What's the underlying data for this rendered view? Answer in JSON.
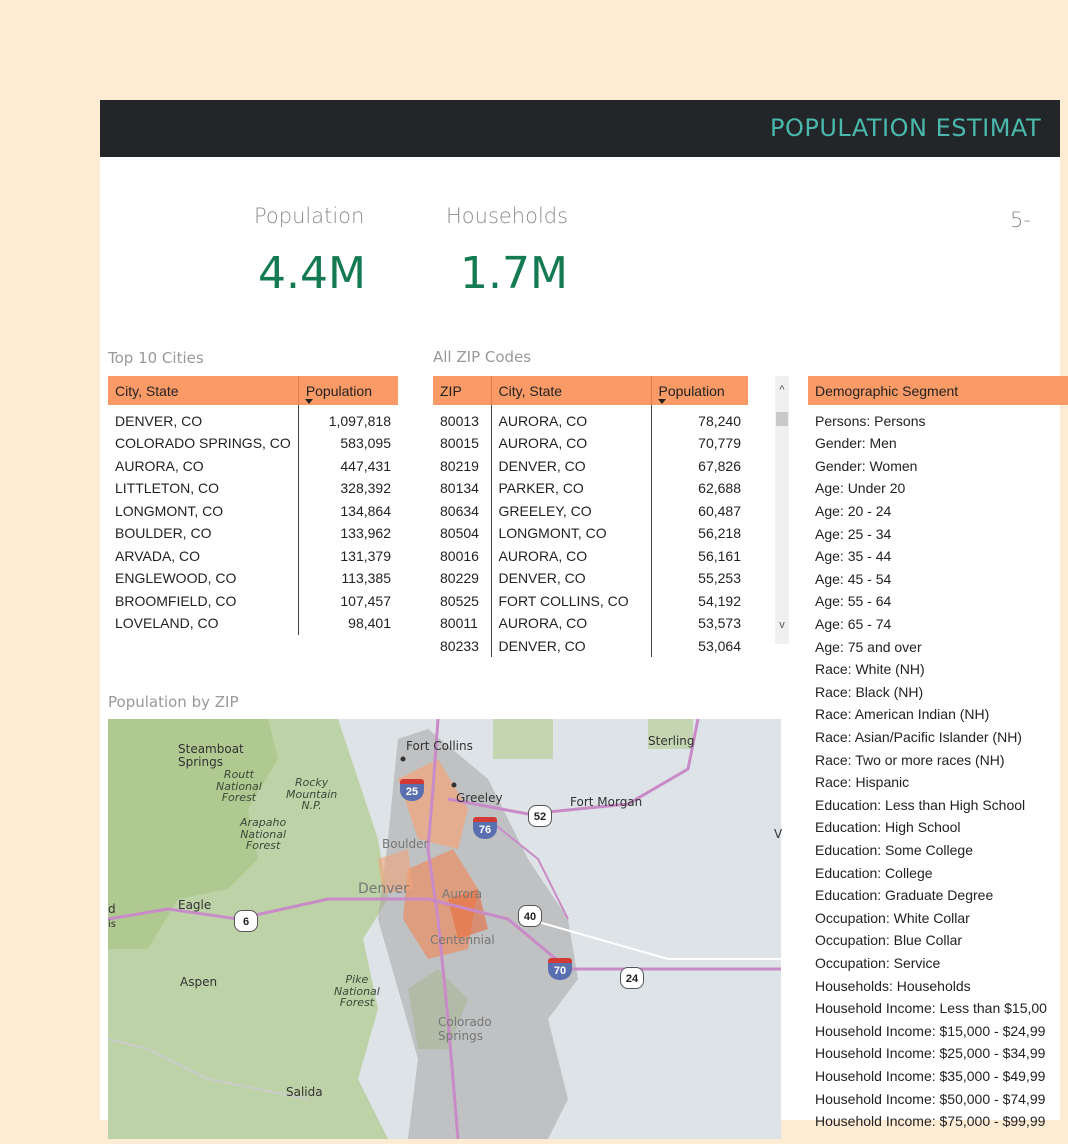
{
  "header": {
    "title": "POPULATION ESTIMAT",
    "subtitle_fragment": "5-"
  },
  "kpis": {
    "population": {
      "label": "Population",
      "value": "4.4M"
    },
    "households": {
      "label": "Households",
      "value": "1.7M"
    }
  },
  "top_cities": {
    "title": "Top 10 Cities",
    "columns": [
      "City, State",
      "Population"
    ],
    "rows": [
      [
        "DENVER, CO",
        "1,097,818"
      ],
      [
        "COLORADO SPRINGS, CO",
        "583,095"
      ],
      [
        "AURORA, CO",
        "447,431"
      ],
      [
        "LITTLETON, CO",
        "328,392"
      ],
      [
        "LONGMONT, CO",
        "134,864"
      ],
      [
        "BOULDER, CO",
        "133,962"
      ],
      [
        "ARVADA, CO",
        "131,379"
      ],
      [
        "ENGLEWOOD, CO",
        "113,385"
      ],
      [
        "BROOMFIELD, CO",
        "107,457"
      ],
      [
        "LOVELAND, CO",
        "98,401"
      ]
    ]
  },
  "zip_codes": {
    "title": "All ZIP Codes",
    "columns": [
      "ZIP",
      "City, State",
      "Population"
    ],
    "rows": [
      [
        "80013",
        "AURORA, CO",
        "78,240"
      ],
      [
        "80015",
        "AURORA, CO",
        "70,779"
      ],
      [
        "80219",
        "DENVER, CO",
        "67,826"
      ],
      [
        "80134",
        "PARKER, CO",
        "62,688"
      ],
      [
        "80634",
        "GREELEY, CO",
        "60,487"
      ],
      [
        "80504",
        "LONGMONT, CO",
        "56,218"
      ],
      [
        "80016",
        "AURORA, CO",
        "56,161"
      ],
      [
        "80229",
        "DENVER, CO",
        "55,253"
      ],
      [
        "80525",
        "FORT COLLINS, CO",
        "54,192"
      ],
      [
        "80011",
        "AURORA, CO",
        "53,573"
      ],
      [
        "80233",
        "DENVER, CO",
        "53,064"
      ]
    ],
    "scroll_up": "^",
    "scroll_down": "v"
  },
  "demographics": {
    "column": "Demographic Segment",
    "rows": [
      "Persons: Persons",
      "Gender: Men",
      "Gender: Women",
      "Age: Under 20",
      "Age: 20 - 24",
      "Age: 25 - 34",
      "Age: 35 - 44",
      "Age: 45 - 54",
      "Age: 55 - 64",
      "Age: 65 - 74",
      "Age: 75 and over",
      "Race: White (NH)",
      "Race: Black (NH)",
      "Race: American Indian (NH)",
      "Race: Asian/Pacific Islander (NH)",
      "Race: Two or more races (NH)",
      "Race: Hispanic",
      "Education: Less than High School",
      "Education: High School",
      "Education: Some College",
      "Education: College",
      "Education: Graduate Degree",
      "Occupation: White Collar",
      "Occupation: Blue Collar",
      "Occupation: Service",
      "Households: Households",
      "Household Income: Less than $15,00",
      "Household Income: $15,000 - $24,99",
      "Household Income: $25,000 - $34,99",
      "Household Income: $35,000 - $49,99",
      "Household Income: $50,000 - $74,99",
      "Household Income: $75,000 - $99,99"
    ]
  },
  "map": {
    "title": "Population by ZIP",
    "labels": {
      "steamboat": "Steamboat\nSprings",
      "routt": "Routt\nNational\nForest",
      "rocky": "Rocky\nMountain\nN.P.",
      "arapaho": "Arapaho\nNational\nForest",
      "fort_collins": "Fort Collins",
      "sterling": "Sterling",
      "greeley": "Greeley",
      "fort_morgan": "Fort Morgan",
      "boulder": "Boulder",
      "denver": "Denver",
      "aurora": "Aurora",
      "centennial": "Centennial",
      "eagle": "Eagle",
      "aspen": "Aspen",
      "pike": "Pike\nNational\nForest",
      "colorado_springs": "Colorado\nSprings",
      "salida": "Salida",
      "edge_d": "d",
      "edge_is": "is",
      "edge_v": "V"
    },
    "shields": {
      "i25": "25",
      "i76": "76",
      "i70": "70",
      "us52": "52",
      "us6": "6",
      "us40": "40",
      "us24": "24"
    }
  },
  "colors": {
    "header_bg": "#232628",
    "accent": "#4ab8ad",
    "kpi": "#137a52",
    "table_header": "#f99a67",
    "background": "#fdebd3"
  }
}
